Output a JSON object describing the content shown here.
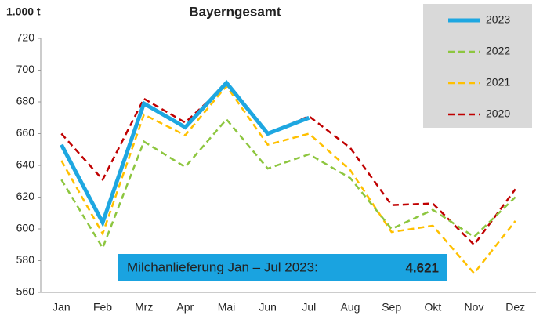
{
  "chart_data": {
    "type": "line",
    "title": "Bayerngesamt",
    "y_label": "1.000 t",
    "categories": [
      "Jan",
      "Feb",
      "Mrz",
      "Apr",
      "Mai",
      "Jun",
      "Jul",
      "Aug",
      "Sep",
      "Okt",
      "Nov",
      "Dez"
    ],
    "ylim": [
      560,
      720
    ],
    "yticks": [
      560,
      580,
      600,
      620,
      640,
      660,
      680,
      700,
      720
    ],
    "series": [
      {
        "name": "2023",
        "color": "#1ea7e1",
        "dash": false,
        "values": [
          653,
          604,
          679,
          664,
          692,
          660,
          670,
          null,
          null,
          null,
          null,
          null
        ]
      },
      {
        "name": "2022",
        "color": "#8dc63f",
        "dash": true,
        "values": [
          631,
          588,
          655,
          639,
          669,
          638,
          647,
          632,
          600,
          612,
          595,
          620
        ]
      },
      {
        "name": "2021",
        "color": "#ffc000",
        "dash": true,
        "values": [
          643,
          597,
          672,
          659,
          690,
          653,
          660,
          637,
          598,
          602,
          572,
          605
        ]
      },
      {
        "name": "2020",
        "color": "#c00000",
        "dash": true,
        "values": [
          660,
          631,
          682,
          667,
          691,
          660,
          671,
          651,
          615,
          616,
          590,
          625
        ]
      }
    ],
    "annotation": {
      "text": "Milchanlieferung Jan – Jul 2023:",
      "value": 4.621,
      "value_label": "4.621",
      "color": "#1aa3e0"
    }
  }
}
